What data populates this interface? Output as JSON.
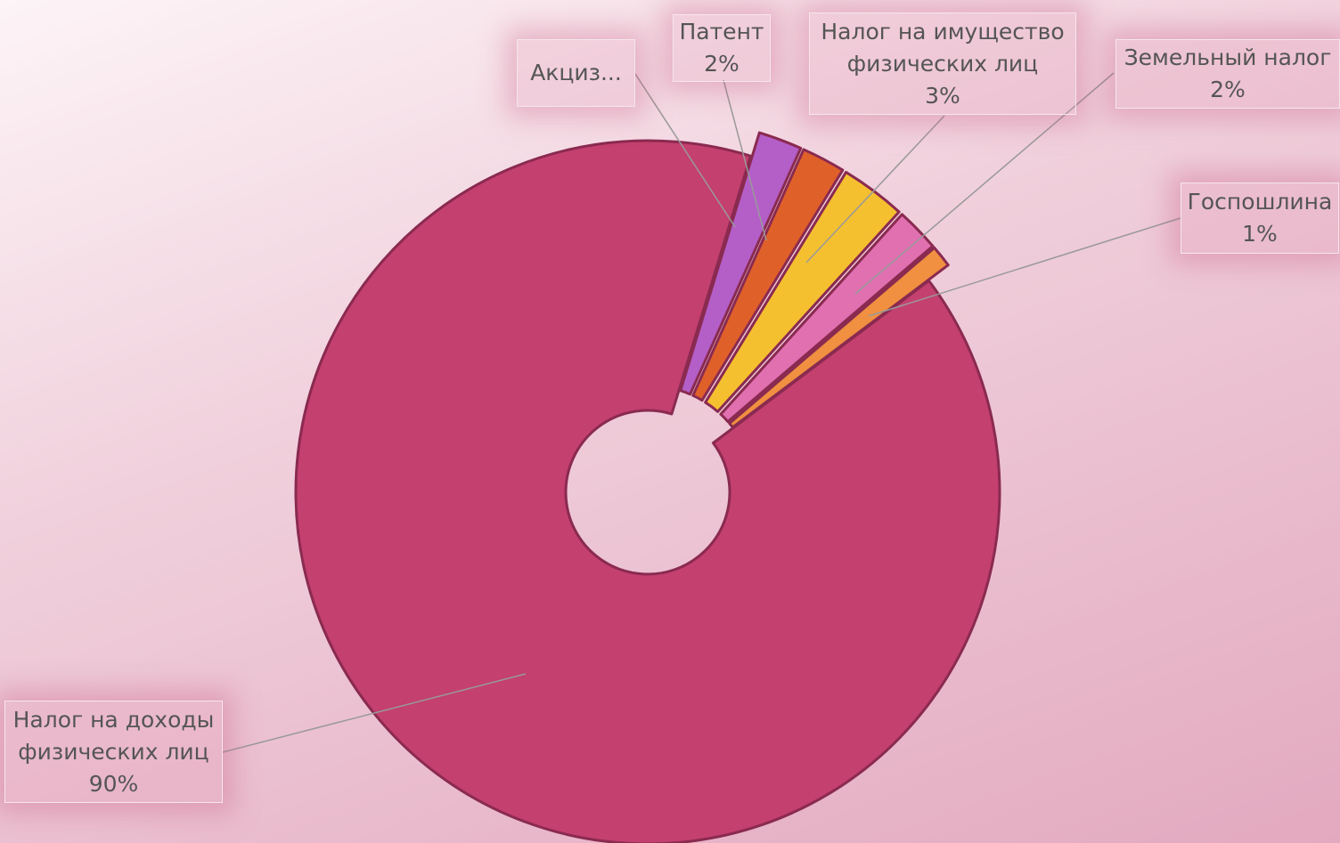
{
  "chart_data": {
    "type": "donut",
    "categories": [
      "Налог на доходы физических лиц",
      "Акциз...",
      "Патент",
      "Налог на имущество физических лиц",
      "Земельный налог",
      "Госпошлина"
    ],
    "values": [
      90,
      2,
      2,
      3,
      2,
      1
    ],
    "value_labels": [
      "90%",
      null,
      "2%",
      "3%",
      "2%",
      "1%"
    ],
    "colors": [
      "#c4406e",
      "#b45fc8",
      "#e0602a",
      "#f5c030",
      "#e070b0",
      "#f09040"
    ]
  }
}
